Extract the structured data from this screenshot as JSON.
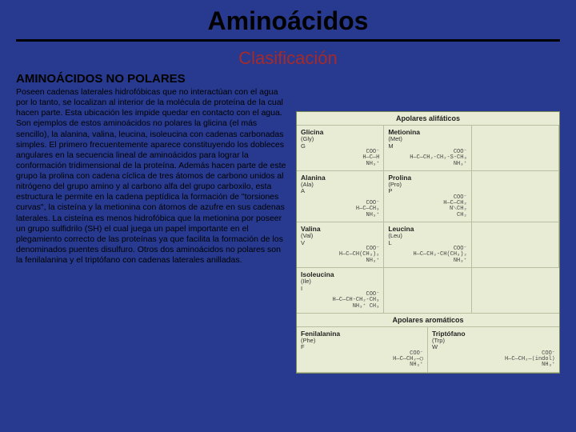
{
  "colors": {
    "background": "#273a8f",
    "title_text": "#000000",
    "rule": "#000000",
    "subtitle_text": "#a52a2a",
    "body_text": "#000000",
    "figure_bg": "#e9ecd4",
    "figure_border": "#7a8a5a",
    "figure_gridline": "#b7bfa0"
  },
  "typography": {
    "title_fontsize": 32,
    "subtitle_fontsize": 22,
    "heading_fontsize": 15,
    "body_fontsize": 10.5,
    "figure_fontsize": 8
  },
  "title": "Aminoácidos",
  "subtitle": "Clasificación",
  "section_heading": "AMINOÁCIDOS NO POLARES",
  "body": "Poseen cadenas laterales hidrofóbicas que no interactúan con el agua por lo tanto, se localizan al interior de la molécula de proteína de la cual hacen parte. Esta ubicación les impide quedar en contacto con el agua. Son ejemplos de estos aminoácidos no polares la glicina (el más sencillo), la alanina, valina, leucina, isoleucina con cadenas carbonadas simples. El primero frecuentemente aparece constituyendo los dobleces angulares en la secuencia lineal de aminoácidos para lograr la conformación tridimensional de la proteína. Además hacen parte de este grupo la prolina con cadena cíclica de tres átomos de carbono unidos al nitrógeno del grupo amino y al carbono alfa del grupo carboxilo, esta estructura le permite en la cadena peptídica la formación de \"torsiones curvas\", la cisteína y la metionina con átomos de azufre en sus cadenas laterales. La cisteína es menos hidrofóbica que la metionina por poseer un grupo sulfidrilo (SH) el cual juega un papel importante en el plegamiento correcto de las proteínas ya que facilita la formación de los denominados puentes disulfuro. Otros dos aminoácidos no polares son la fenilalanina y el triptófano con cadenas laterales anilladas.",
  "figure": {
    "type": "table",
    "sections": [
      {
        "title": "Apolares alifáticos",
        "columns": 3,
        "cells": [
          {
            "name": "Glicina",
            "codes": "(Gly)\nG",
            "formula": "COO⁻\nH—C—H\nNH₃⁺"
          },
          {
            "name": "Metionina",
            "codes": "(Met)\nM",
            "formula": "COO⁻\nH—C—CH₂-CH₂-S-CH₃\nNH₃⁺"
          },
          {
            "name": "",
            "codes": "",
            "formula": ""
          },
          {
            "name": "Alanina",
            "codes": "(Ala)\nA",
            "formula": "COO⁻\nH—C—CH₃\nNH₃⁺"
          },
          {
            "name": "Prolina",
            "codes": "(Pro)\nP",
            "formula": "COO⁻\nH—C—CH₂\n  N⟍CH₂\n   CH₂"
          },
          {
            "name": "",
            "codes": "",
            "formula": ""
          },
          {
            "name": "Valina",
            "codes": "(Val)\nV",
            "formula": "COO⁻\nH—C—CH(CH₃)₂\nNH₃⁺"
          },
          {
            "name": "Leucina",
            "codes": "(Leu)\nL",
            "formula": "COO⁻\nH—C—CH₂-CH(CH₃)₂\nNH₃⁺"
          },
          {
            "name": "",
            "codes": "",
            "formula": ""
          },
          {
            "name": "Isoleucina",
            "codes": "(Ile)\nI",
            "formula": "COO⁻\nH—C—CH-CH₂-CH₃\nNH₃⁺ CH₃"
          },
          {
            "name": "",
            "codes": "",
            "formula": ""
          },
          {
            "name": "",
            "codes": "",
            "formula": ""
          }
        ]
      },
      {
        "title": "Apolares aromáticos",
        "columns": 2,
        "cells": [
          {
            "name": "Fenilalanina",
            "codes": "(Phe)\nF",
            "formula": "COO⁻\nH—C—CH₂—◯\nNH₃⁺"
          },
          {
            "name": "Triptófano",
            "codes": "(Trp)\nW",
            "formula": "COO⁻\nH—C—CH₂—⟨indol⟩\nNH₃⁺"
          }
        ]
      }
    ]
  }
}
